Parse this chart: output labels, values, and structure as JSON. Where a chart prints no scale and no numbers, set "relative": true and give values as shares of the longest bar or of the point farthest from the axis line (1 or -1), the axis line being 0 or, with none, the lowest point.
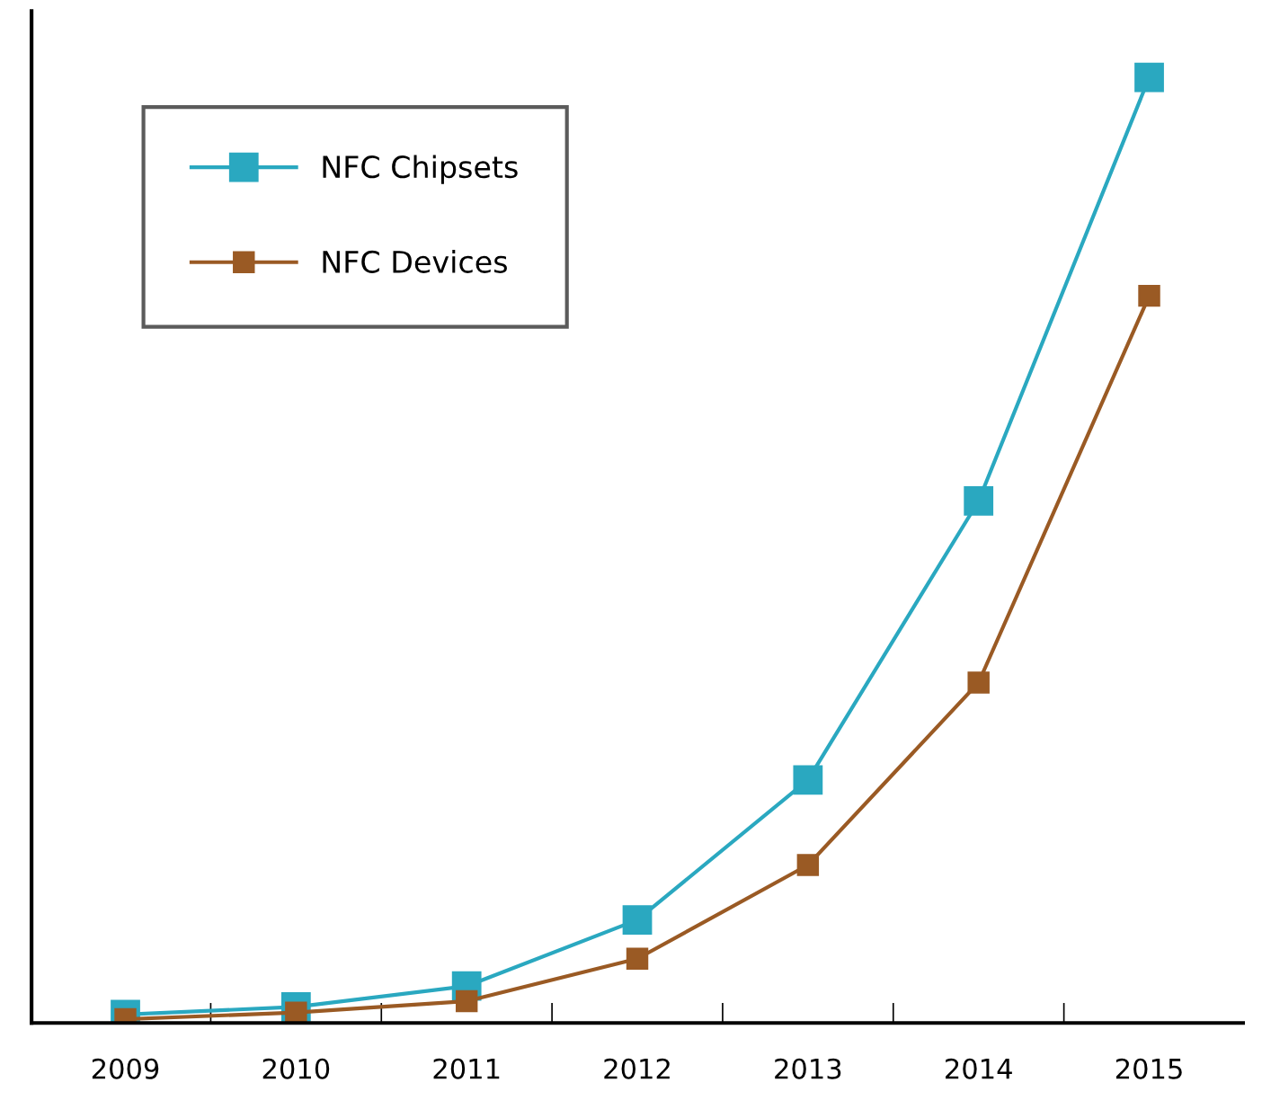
{
  "chart_data": {
    "type": "line",
    "relative": true,
    "categories": [
      "2009",
      "2010",
      "2011",
      "2012",
      "2013",
      "2014",
      "2015"
    ],
    "series": [
      {
        "name": "NFC Chipsets",
        "color": "#2aa8c0",
        "values": [
          0.009,
          0.017,
          0.039,
          0.109,
          0.257,
          0.552,
          1
        ]
      },
      {
        "name": "NFC Devices",
        "color": "#9a5a24",
        "values": [
          0.004,
          0.011,
          0.023,
          0.068,
          0.167,
          0.36,
          0.769
        ]
      }
    ],
    "marker": "square",
    "legend": "top left",
    "grid": false
  }
}
